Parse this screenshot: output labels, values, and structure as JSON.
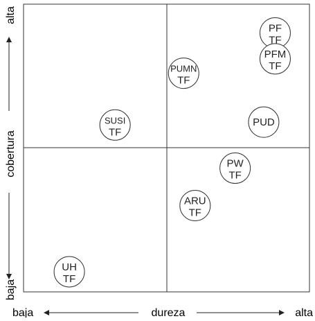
{
  "axes": {
    "x": {
      "label": "dureza",
      "low": "baja",
      "high": "alta"
    },
    "y": {
      "label": "cobertura",
      "low": "baja",
      "high": "alta"
    }
  },
  "chart_data": {
    "type": "scatter",
    "x_label": "dureza",
    "y_label": "cobertura",
    "x_ends": [
      "baja",
      "alta"
    ],
    "y_ends": [
      "baja",
      "alta"
    ],
    "xlim": [
      0,
      1
    ],
    "ylim": [
      0,
      1
    ],
    "quadrant_split": {
      "x": 0.5,
      "y": 0.5
    },
    "points": [
      {
        "line1": "PF",
        "line2": "TF",
        "x": 0.88,
        "y": 0.9
      },
      {
        "line1": "PFM",
        "line2": "TF",
        "x": 0.88,
        "y": 0.81
      },
      {
        "line1": "PUMN",
        "line2": "TF",
        "x": 0.56,
        "y": 0.76
      },
      {
        "line1": "PUD",
        "line2": "",
        "x": 0.84,
        "y": 0.59
      },
      {
        "line1": "SUSI",
        "line2": "TF",
        "x": 0.32,
        "y": 0.58
      },
      {
        "line1": "PW",
        "line2": "TF",
        "x": 0.74,
        "y": 0.43
      },
      {
        "line1": "ARU",
        "line2": "TF",
        "x": 0.6,
        "y": 0.3
      },
      {
        "line1": "UH",
        "line2": "TF",
        "x": 0.16,
        "y": 0.07
      }
    ]
  }
}
